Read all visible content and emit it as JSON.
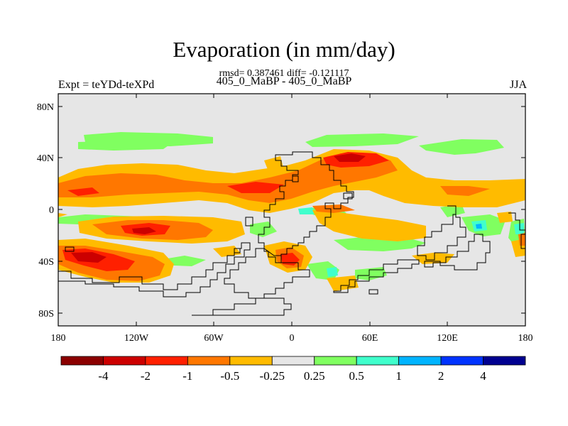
{
  "title": "Evaporation (in mm/day)",
  "stats_line": "rmsd= 0.387461 diff= -0.121117",
  "subtitle": "405_0_MaBP - 405_0_MaBP",
  "left_label": "Expt = teYDd-teXPd",
  "right_label": "JJA",
  "y_ticks": [
    "80N",
    "40N",
    "0",
    "40S",
    "80S"
  ],
  "x_ticks": [
    "180",
    "120W",
    "60W",
    "0",
    "60E",
    "120E",
    "180"
  ],
  "colorbar": {
    "colors": [
      "#8b0000",
      "#cc0000",
      "#ff2000",
      "#ff7700",
      "#ffbb00",
      "#e6e6e6",
      "#80ff60",
      "#40ffcc",
      "#00b4ff",
      "#0033ff",
      "#000090"
    ],
    "labels": [
      "-4",
      "-2",
      "-1",
      "-0.5",
      "-0.25",
      "0.25",
      "0.5",
      "1",
      "2",
      "4"
    ]
  }
}
